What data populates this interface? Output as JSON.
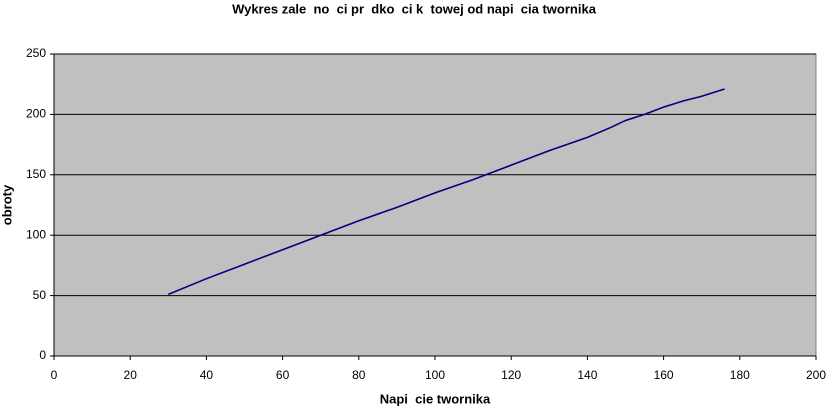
{
  "chart_data": {
    "type": "line",
    "title": "Wykres zale  no  ci pr  dko  ci k  towej od napi  cia twornika",
    "x_label": "Napi  cie twornika",
    "y_label": "obroty",
    "x": [
      30,
      40,
      50,
      60,
      70,
      80,
      90,
      100,
      110,
      120,
      130,
      140,
      146,
      150,
      155,
      160,
      165,
      170,
      176
    ],
    "series": [
      {
        "name": "obroty",
        "color": "#000080",
        "values": [
          51,
          64,
          76,
          88,
          100,
          112,
          123,
          135,
          146,
          158,
          170,
          181,
          189,
          195,
          200,
          206,
          211,
          215,
          221
        ]
      }
    ],
    "xlim": [
      0,
      200
    ],
    "xticks": [
      0,
      20,
      40,
      60,
      80,
      100,
      120,
      140,
      160,
      180,
      200
    ],
    "ylim": [
      0,
      250
    ],
    "yticks": [
      0,
      50,
      100,
      150,
      200,
      250
    ],
    "grid": true,
    "plot_background": "#c0c0c0"
  }
}
